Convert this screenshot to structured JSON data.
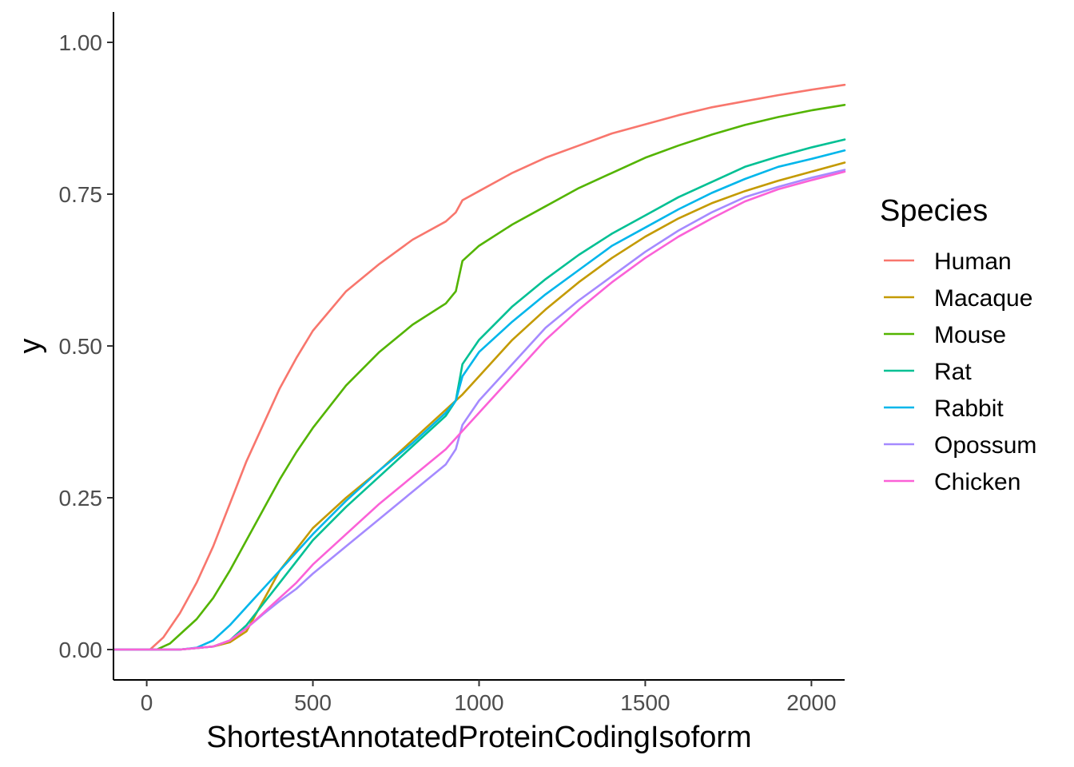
{
  "chart_data": {
    "type": "line",
    "title": "",
    "xlabel": "ShortestAnnotatedProteinCodingIsoform",
    "ylabel": "y",
    "xlim": [
      -100,
      2100
    ],
    "ylim": [
      -0.05,
      1.05
    ],
    "x_ticks": [
      0,
      500,
      1000,
      1500,
      2000
    ],
    "x_tick_labels": [
      "0",
      "500",
      "1000",
      "1500",
      "2000"
    ],
    "y_ticks": [
      0,
      0.25,
      0.5,
      0.75,
      1.0
    ],
    "y_tick_labels": [
      "0.00",
      "0.25",
      "0.50",
      "0.75",
      "1.00"
    ],
    "grid": false,
    "legend": {
      "title": "Species",
      "position": "right"
    },
    "series": [
      {
        "name": "Human",
        "color": "#F8766D",
        "points": [
          [
            -100,
            0
          ],
          [
            10,
            0
          ],
          [
            50,
            0.02
          ],
          [
            100,
            0.06
          ],
          [
            150,
            0.11
          ],
          [
            200,
            0.17
          ],
          [
            250,
            0.24
          ],
          [
            300,
            0.31
          ],
          [
            350,
            0.37
          ],
          [
            400,
            0.43
          ],
          [
            450,
            0.48
          ],
          [
            500,
            0.525
          ],
          [
            600,
            0.59
          ],
          [
            700,
            0.635
          ],
          [
            800,
            0.675
          ],
          [
            900,
            0.705
          ],
          [
            930,
            0.72
          ],
          [
            950,
            0.74
          ],
          [
            1000,
            0.755
          ],
          [
            1100,
            0.785
          ],
          [
            1200,
            0.81
          ],
          [
            1300,
            0.83
          ],
          [
            1400,
            0.85
          ],
          [
            1500,
            0.865
          ],
          [
            1600,
            0.88
          ],
          [
            1700,
            0.893
          ],
          [
            1800,
            0.903
          ],
          [
            1900,
            0.913
          ],
          [
            2000,
            0.922
          ],
          [
            2100,
            0.93
          ]
        ]
      },
      {
        "name": "Macaque",
        "color": "#C49A00",
        "points": [
          [
            -100,
            0
          ],
          [
            100,
            0
          ],
          [
            200,
            0.005
          ],
          [
            250,
            0.012
          ],
          [
            300,
            0.03
          ],
          [
            350,
            0.08
          ],
          [
            400,
            0.13
          ],
          [
            450,
            0.165
          ],
          [
            500,
            0.2
          ],
          [
            600,
            0.25
          ],
          [
            700,
            0.295
          ],
          [
            800,
            0.345
          ],
          [
            900,
            0.395
          ],
          [
            950,
            0.42
          ],
          [
            1000,
            0.45
          ],
          [
            1100,
            0.51
          ],
          [
            1200,
            0.56
          ],
          [
            1300,
            0.605
          ],
          [
            1400,
            0.645
          ],
          [
            1500,
            0.68
          ],
          [
            1600,
            0.71
          ],
          [
            1700,
            0.735
          ],
          [
            1800,
            0.755
          ],
          [
            1900,
            0.772
          ],
          [
            2000,
            0.787
          ],
          [
            2100,
            0.802
          ]
        ]
      },
      {
        "name": "Mouse",
        "color": "#53B400",
        "points": [
          [
            -100,
            0
          ],
          [
            30,
            0
          ],
          [
            70,
            0.01
          ],
          [
            100,
            0.025
          ],
          [
            150,
            0.05
          ],
          [
            200,
            0.085
          ],
          [
            250,
            0.13
          ],
          [
            300,
            0.18
          ],
          [
            350,
            0.23
          ],
          [
            400,
            0.28
          ],
          [
            450,
            0.325
          ],
          [
            500,
            0.365
          ],
          [
            600,
            0.435
          ],
          [
            700,
            0.49
          ],
          [
            800,
            0.535
          ],
          [
            900,
            0.57
          ],
          [
            930,
            0.59
          ],
          [
            950,
            0.64
          ],
          [
            1000,
            0.665
          ],
          [
            1100,
            0.7
          ],
          [
            1200,
            0.73
          ],
          [
            1300,
            0.76
          ],
          [
            1400,
            0.785
          ],
          [
            1500,
            0.81
          ],
          [
            1600,
            0.83
          ],
          [
            1700,
            0.848
          ],
          [
            1800,
            0.864
          ],
          [
            1900,
            0.877
          ],
          [
            2000,
            0.888
          ],
          [
            2100,
            0.897
          ]
        ]
      },
      {
        "name": "Rat",
        "color": "#00C094",
        "points": [
          [
            -100,
            0
          ],
          [
            100,
            0
          ],
          [
            200,
            0.005
          ],
          [
            250,
            0.015
          ],
          [
            300,
            0.04
          ],
          [
            350,
            0.075
          ],
          [
            400,
            0.11
          ],
          [
            450,
            0.145
          ],
          [
            500,
            0.18
          ],
          [
            600,
            0.235
          ],
          [
            700,
            0.285
          ],
          [
            800,
            0.335
          ],
          [
            900,
            0.385
          ],
          [
            930,
            0.41
          ],
          [
            950,
            0.47
          ],
          [
            1000,
            0.51
          ],
          [
            1100,
            0.565
          ],
          [
            1200,
            0.61
          ],
          [
            1300,
            0.65
          ],
          [
            1400,
            0.685
          ],
          [
            1500,
            0.715
          ],
          [
            1600,
            0.745
          ],
          [
            1700,
            0.77
          ],
          [
            1800,
            0.795
          ],
          [
            1900,
            0.812
          ],
          [
            2000,
            0.827
          ],
          [
            2100,
            0.84
          ]
        ]
      },
      {
        "name": "Rabbit",
        "color": "#00B6EB",
        "points": [
          [
            -100,
            0
          ],
          [
            100,
            0
          ],
          [
            150,
            0.003
          ],
          [
            200,
            0.015
          ],
          [
            250,
            0.04
          ],
          [
            300,
            0.07
          ],
          [
            350,
            0.1
          ],
          [
            400,
            0.13
          ],
          [
            450,
            0.16
          ],
          [
            500,
            0.19
          ],
          [
            600,
            0.245
          ],
          [
            700,
            0.295
          ],
          [
            800,
            0.34
          ],
          [
            900,
            0.39
          ],
          [
            930,
            0.41
          ],
          [
            950,
            0.45
          ],
          [
            1000,
            0.49
          ],
          [
            1100,
            0.54
          ],
          [
            1200,
            0.585
          ],
          [
            1300,
            0.625
          ],
          [
            1400,
            0.665
          ],
          [
            1500,
            0.695
          ],
          [
            1600,
            0.725
          ],
          [
            1700,
            0.752
          ],
          [
            1800,
            0.775
          ],
          [
            1900,
            0.795
          ],
          [
            2000,
            0.808
          ],
          [
            2100,
            0.822
          ]
        ]
      },
      {
        "name": "Opossum",
        "color": "#A58AFF",
        "points": [
          [
            -100,
            0
          ],
          [
            100,
            0
          ],
          [
            200,
            0.005
          ],
          [
            250,
            0.015
          ],
          [
            300,
            0.035
          ],
          [
            350,
            0.058
          ],
          [
            400,
            0.08
          ],
          [
            450,
            0.1
          ],
          [
            500,
            0.125
          ],
          [
            600,
            0.17
          ],
          [
            700,
            0.215
          ],
          [
            800,
            0.26
          ],
          [
            900,
            0.305
          ],
          [
            930,
            0.33
          ],
          [
            950,
            0.37
          ],
          [
            1000,
            0.41
          ],
          [
            1100,
            0.47
          ],
          [
            1200,
            0.53
          ],
          [
            1300,
            0.575
          ],
          [
            1400,
            0.615
          ],
          [
            1500,
            0.655
          ],
          [
            1600,
            0.69
          ],
          [
            1700,
            0.72
          ],
          [
            1800,
            0.745
          ],
          [
            1900,
            0.762
          ],
          [
            2000,
            0.777
          ],
          [
            2100,
            0.79
          ]
        ]
      },
      {
        "name": "Chicken",
        "color": "#FB61D7",
        "points": [
          [
            -100,
            0
          ],
          [
            100,
            0
          ],
          [
            200,
            0.005
          ],
          [
            250,
            0.015
          ],
          [
            300,
            0.035
          ],
          [
            350,
            0.06
          ],
          [
            400,
            0.085
          ],
          [
            450,
            0.11
          ],
          [
            500,
            0.14
          ],
          [
            600,
            0.19
          ],
          [
            700,
            0.24
          ],
          [
            800,
            0.285
          ],
          [
            900,
            0.33
          ],
          [
            950,
            0.36
          ],
          [
            1000,
            0.39
          ],
          [
            1100,
            0.45
          ],
          [
            1200,
            0.51
          ],
          [
            1300,
            0.56
          ],
          [
            1400,
            0.605
          ],
          [
            1500,
            0.645
          ],
          [
            1600,
            0.68
          ],
          [
            1700,
            0.71
          ],
          [
            1800,
            0.738
          ],
          [
            1900,
            0.758
          ],
          [
            2000,
            0.773
          ],
          [
            2100,
            0.787
          ]
        ]
      }
    ]
  }
}
